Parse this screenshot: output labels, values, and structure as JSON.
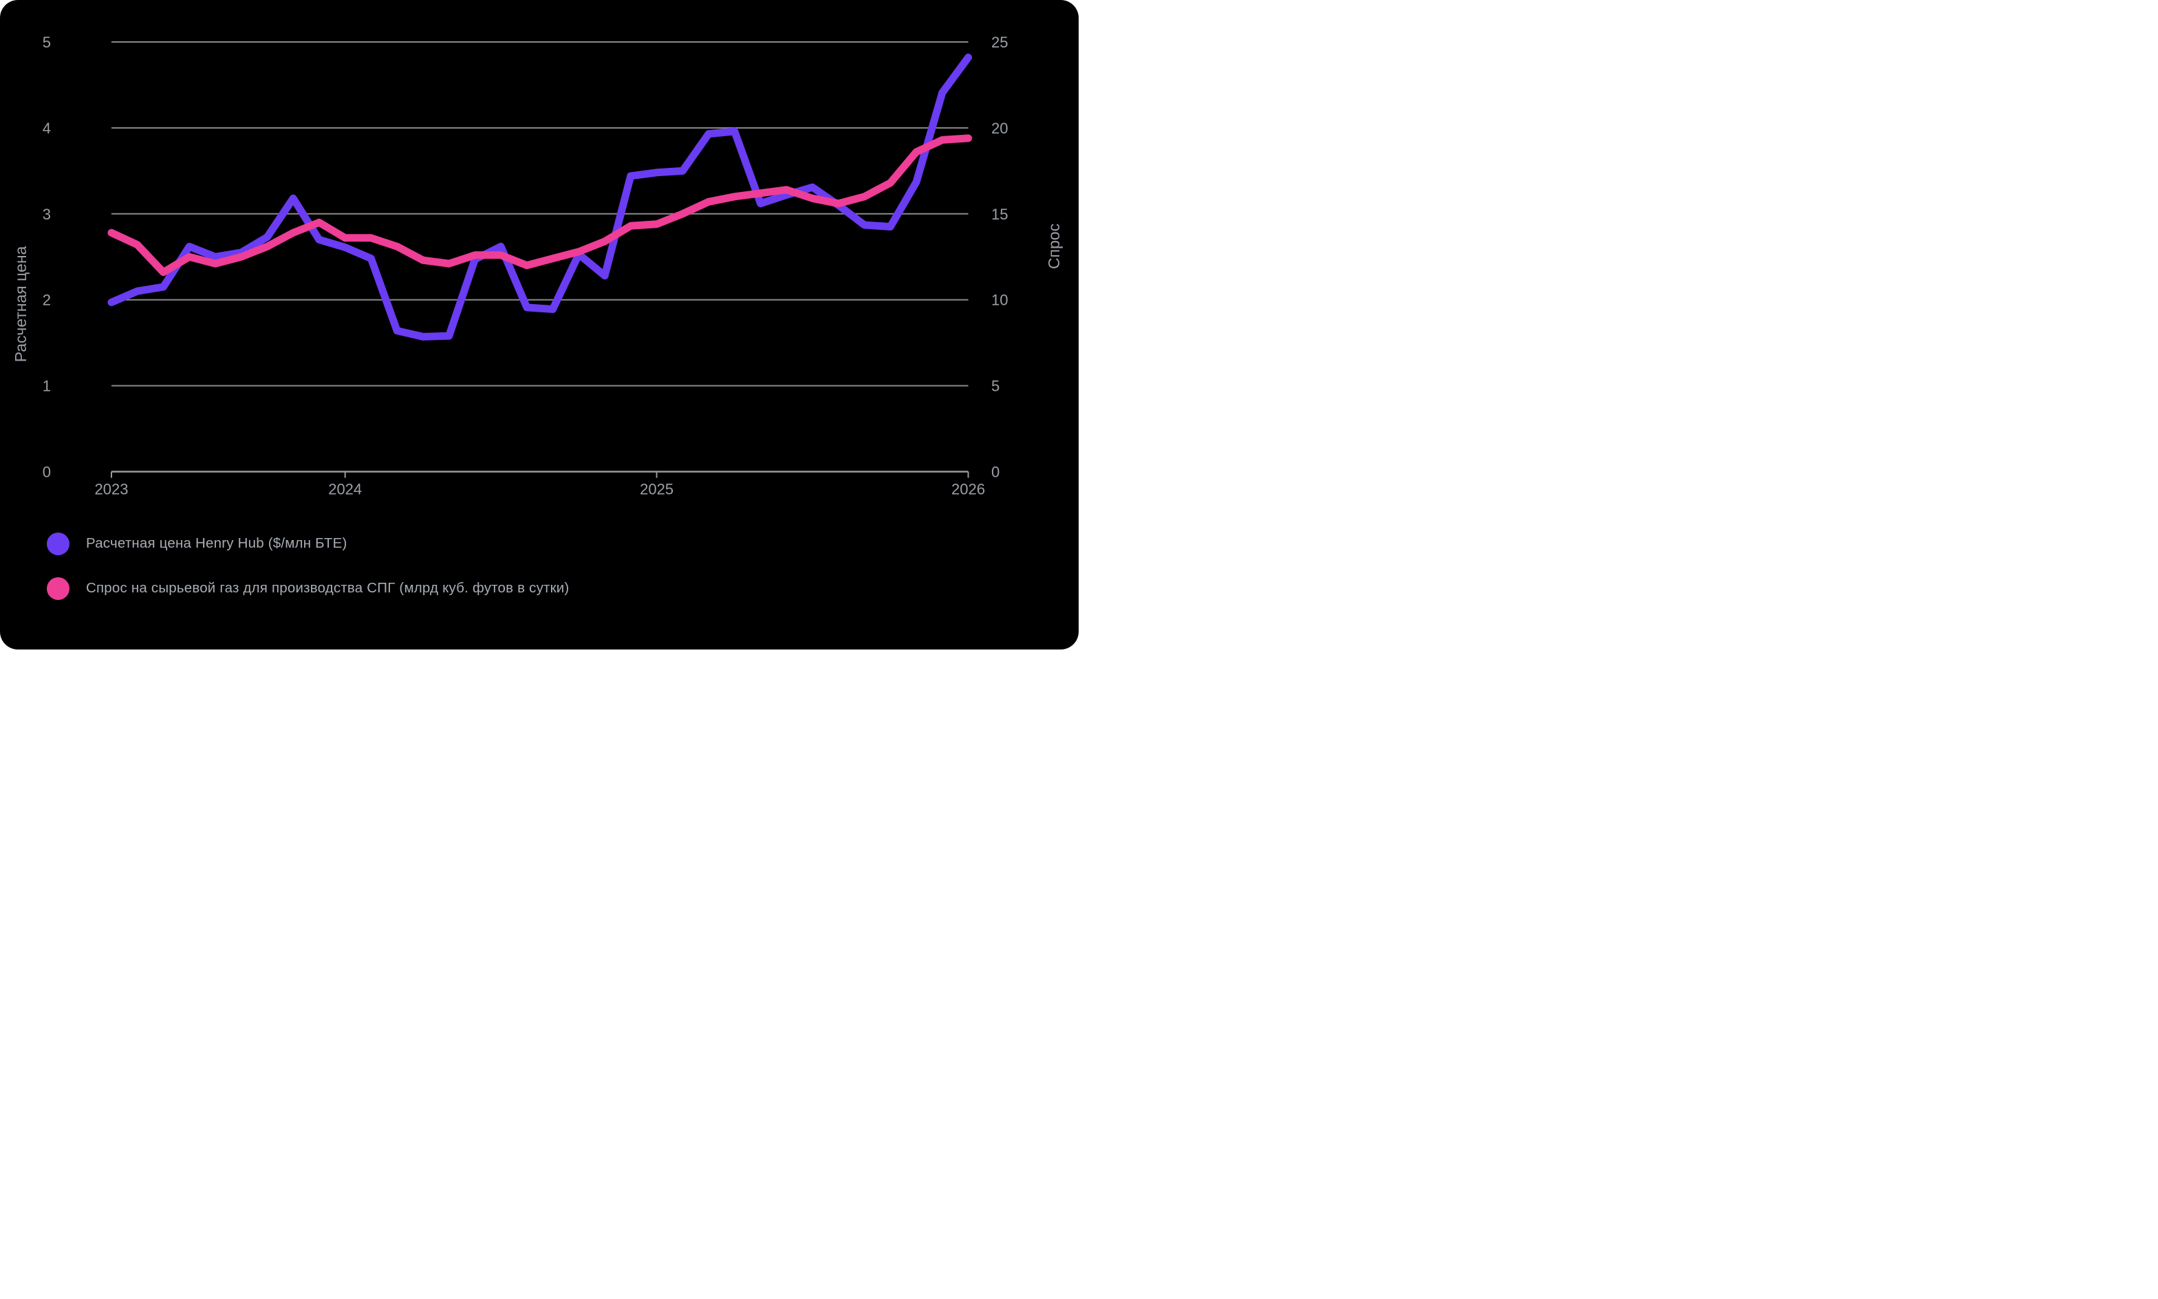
{
  "card": {
    "background": "#000000",
    "page_background": "#ffffff"
  },
  "colors": {
    "price_line": "#6A3CF2",
    "demand_line": "#EE3E96",
    "gridline": "#8a8a8a",
    "axis_line": "#9a9a9a",
    "tick_text": "#9ba0a7",
    "axis_title_text": "#9ba0a7",
    "legend_text": "#a8adb5"
  },
  "chart_data": {
    "type": "line",
    "title": "",
    "x_unit": "month",
    "months": [
      "2023-04",
      "2023-05",
      "2023-06",
      "2023-07",
      "2023-08",
      "2023-09",
      "2023-10",
      "2023-11",
      "2023-12",
      "2024-01",
      "2024-02",
      "2024-03",
      "2024-04",
      "2024-05",
      "2024-06",
      "2024-07",
      "2024-08",
      "2024-09",
      "2024-10",
      "2024-11",
      "2024-12",
      "2025-01",
      "2025-02",
      "2025-03",
      "2025-04",
      "2025-05",
      "2025-06",
      "2025-07",
      "2025-08",
      "2025-09",
      "2025-10",
      "2025-11",
      "2025-12",
      "2026-01"
    ],
    "series": [
      {
        "name": "Расчетная цена Henry Hub ($/млн БТЕ)",
        "axis": "left",
        "values": [
          1.97,
          2.1,
          2.15,
          2.62,
          2.5,
          2.55,
          2.73,
          3.18,
          2.7,
          2.61,
          2.48,
          1.64,
          1.57,
          1.58,
          2.47,
          2.62,
          1.91,
          1.89,
          2.53,
          2.28,
          3.44,
          3.48,
          3.5,
          3.93,
          3.96,
          3.12,
          3.22,
          3.31,
          3.1,
          2.87,
          2.85,
          3.37,
          4.41,
          4.82
        ]
      },
      {
        "name": "Спрос на сырьевой газ для производства СПГ (млрд куб. футов в сутки)",
        "axis": "right",
        "values": [
          13.9,
          13.2,
          11.6,
          12.5,
          12.1,
          12.5,
          13.1,
          13.9,
          14.5,
          13.6,
          13.6,
          13.1,
          12.3,
          12.1,
          12.6,
          12.6,
          12.0,
          12.4,
          12.8,
          13.4,
          14.3,
          14.4,
          15.0,
          15.7,
          16.0,
          16.2,
          16.4,
          15.9,
          15.6,
          16.0,
          16.8,
          18.6,
          19.3,
          19.4
        ]
      }
    ],
    "left_axis": {
      "title": "Расчетная цена",
      "min": 0,
      "max": 5,
      "tick_labels": [
        "0",
        "1",
        "2",
        "3",
        "4",
        "5"
      ]
    },
    "right_axis": {
      "title": "Спрос",
      "min": 0,
      "max": 25,
      "tick_labels": [
        "0",
        "5",
        "10",
        "15",
        "20",
        "25"
      ]
    },
    "x_axis": {
      "tick_labels": [
        "2023",
        "2024",
        "2025",
        "2026"
      ],
      "tick_month_index": [
        0,
        9,
        21,
        33
      ]
    },
    "grid": true,
    "legend_position": "bottom-left"
  },
  "legend": {
    "items": [
      {
        "label": "Расчетная цена Henry Hub ($/млн БТЕ)"
      },
      {
        "label": "Спрос на сырьевой газ для производства СПГ (млрд куб. футов в сутки)"
      }
    ]
  }
}
